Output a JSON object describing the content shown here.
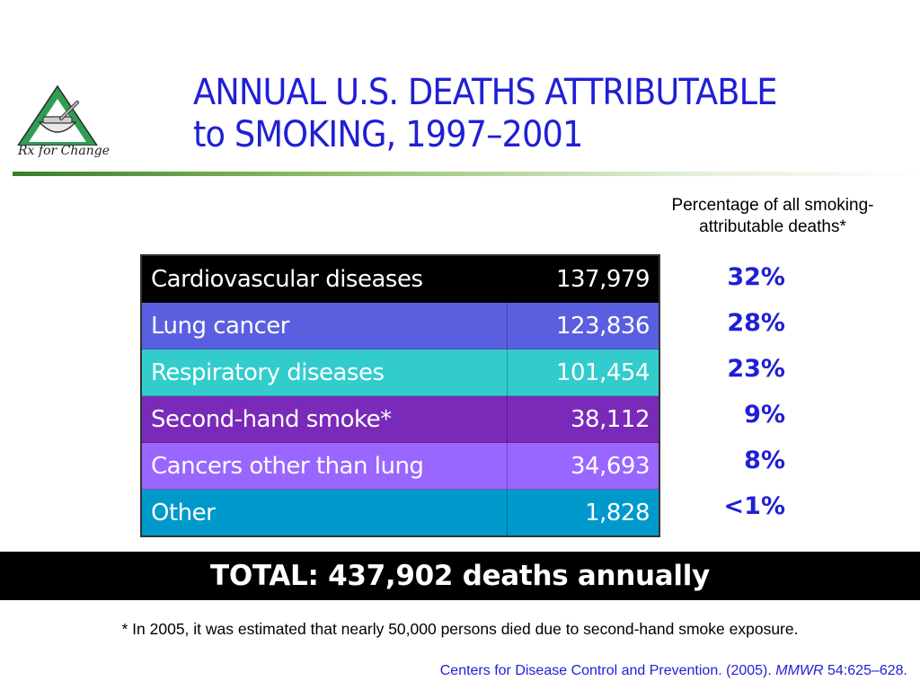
{
  "logo": {
    "text": "Rx for Change",
    "small_text": "",
    "colors": {
      "triangle": "#2f9e55",
      "outline": "#333333"
    },
    "icon": "mortar-and-pestle-icon"
  },
  "title": {
    "line1": "ANNUAL U.S. DEATHS ATTRIBUTABLE",
    "line2": "to SMOKING, 1997–2001",
    "color": "#1f1fd6"
  },
  "percentage_header": {
    "line1": "Percentage of all smoking-",
    "line2": "attributable deaths*"
  },
  "rows": [
    {
      "label": "Cardiovascular diseases",
      "count": "137,979",
      "percent": "32%",
      "color": "#000000"
    },
    {
      "label": "Lung cancer",
      "count": "123,836",
      "percent": "28%",
      "color": "#5a5fe0"
    },
    {
      "label": "Respiratory diseases",
      "count": "101,454",
      "percent": "23%",
      "color": "#33cccc"
    },
    {
      "label": "Second-hand smoke*",
      "count": "38,112",
      "percent": "9%",
      "color": "#7a2ab8"
    },
    {
      "label": "Cancers other than lung",
      "count": "34,693",
      "percent": "8%",
      "color": "#9966ff"
    },
    {
      "label": "Other",
      "count": "1,828",
      "percent": "<1%",
      "color": "#0099cc"
    }
  ],
  "total": {
    "text": "TOTAL: 437,902 deaths annually"
  },
  "footnote": "* In 2005, it was estimated that nearly 50,000 persons died due to second-hand smoke exposure.",
  "citation": {
    "prefix": "Centers for Disease Control and Prevention. (2005). ",
    "journal": "MMWR",
    "suffix": " 54:625–628."
  }
}
